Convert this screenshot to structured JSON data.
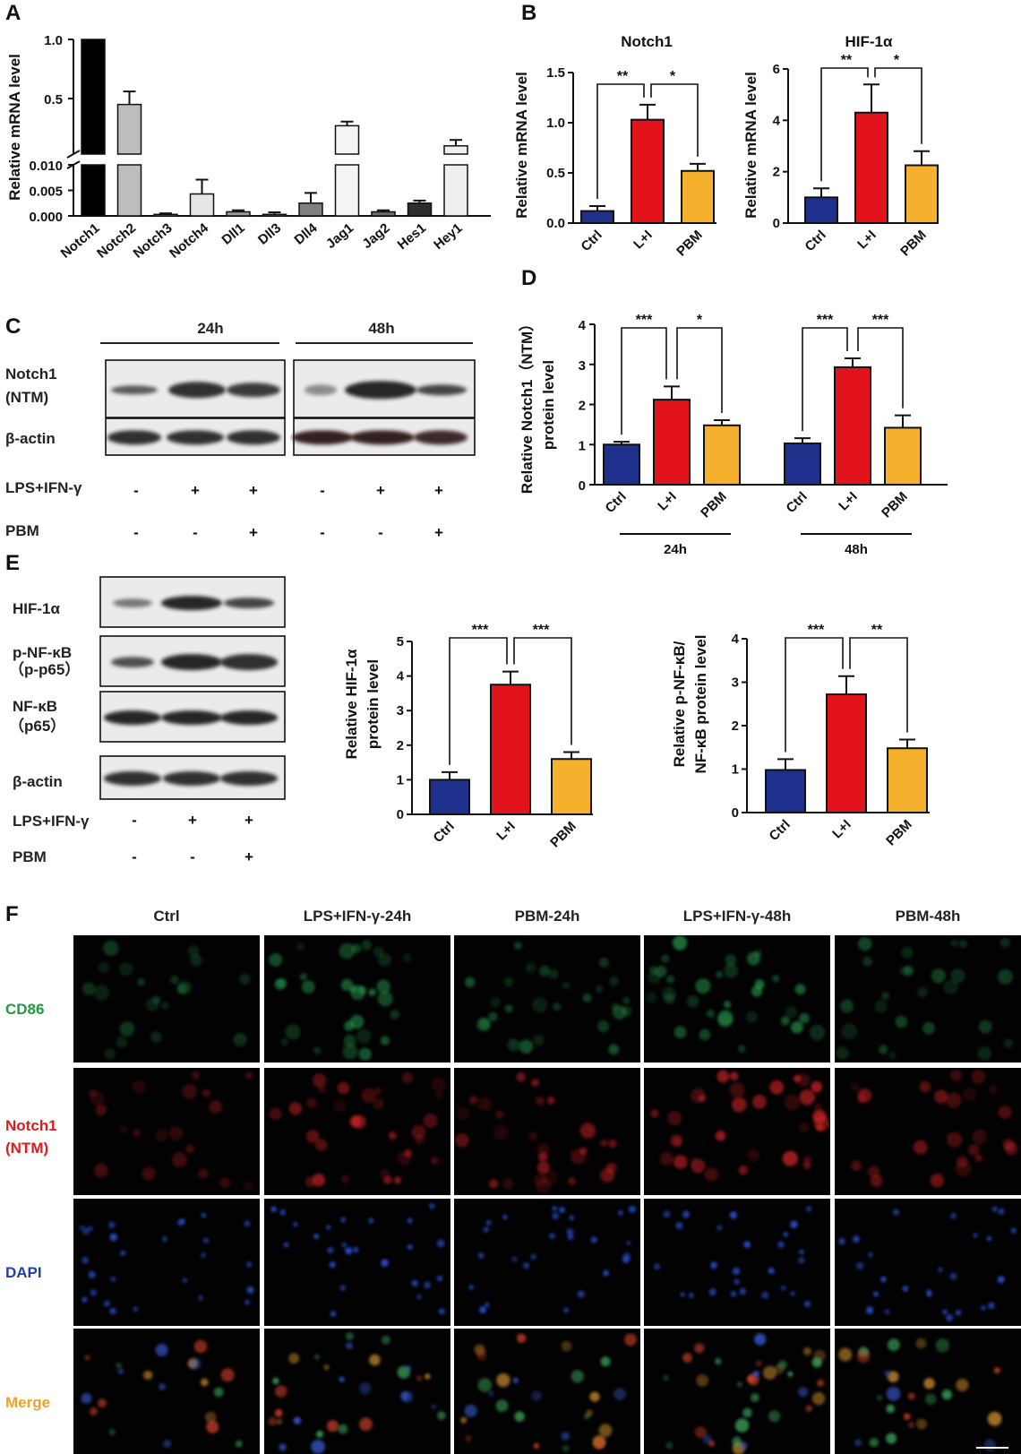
{
  "panel_labels": {
    "A": "A",
    "B": "B",
    "C": "C",
    "D": "D",
    "E": "E",
    "F": "F"
  },
  "colors": {
    "ctrl": "#1f2f8c",
    "li": "#e3131b",
    "pbm": "#f5b12e"
  },
  "blot_c": {
    "time_labels": [
      "24h",
      "48h"
    ],
    "row_labels": [
      "Notch1",
      "(NTM)",
      "β-actin"
    ],
    "treat_labels": [
      "LPS+IFN-γ",
      "PBM"
    ],
    "lps_marks": [
      "-",
      "+",
      "+",
      "-",
      "+",
      "+"
    ],
    "pbm_marks": [
      "-",
      "-",
      "+",
      "-",
      "-",
      "+"
    ]
  },
  "blot_e": {
    "row_labels": [
      "HIF-1α",
      "p-NF-κB",
      "（p-p65）",
      "NF-κB",
      "（p65）",
      "β-actin"
    ],
    "treat_labels": [
      "LPS+IFN-γ",
      "PBM"
    ],
    "lps_marks": [
      "-",
      "+",
      "+"
    ],
    "pbm_marks": [
      "-",
      "-",
      "+"
    ]
  },
  "panel_f": {
    "columns": [
      "Ctrl",
      "LPS+IFN-γ-24h",
      "PBM-24h",
      "LPS+IFN-γ-48h",
      "PBM-48h"
    ],
    "rows": [
      "CD86",
      "Notch1",
      "(NTM)",
      "DAPI",
      "Merge"
    ],
    "row_colors": [
      "#1f9a3c",
      "#e01b1b",
      "#e01b1b",
      "#1f3fb0",
      "#f0a226"
    ]
  },
  "chart_data": [
    {
      "id": "A",
      "type": "bar",
      "ylabel": "Relative mRNA level",
      "categories": [
        "Notch1",
        "Notch2",
        "Notch3",
        "Notch4",
        "Dll1",
        "Dll3",
        "Dll4",
        "Jag1",
        "Jag2",
        "Hes1",
        "Hey1"
      ],
      "values": [
        1.0,
        0.45,
        0.0003,
        0.0043,
        0.0008,
        0.0003,
        0.0025,
        0.27,
        0.0008,
        0.0025,
        0.1
      ],
      "errors": [
        0,
        0.11,
        0.0002,
        0.0028,
        0.0003,
        0.0004,
        0.002,
        0.035,
        0.0003,
        0.0005,
        0.05
      ],
      "fills": [
        "#000000",
        "#bdbdbd",
        "#cfcfcf",
        "#e6e6e6",
        "#9a9a9a",
        "#9a9a9a",
        "#808080",
        "#f4f4f4",
        "#6e6e6e",
        "#2e2e2e",
        "#efefef"
      ],
      "yaxis": {
        "broken": true,
        "lower": {
          "range": [
            0,
            0.01
          ],
          "ticks": [
            "0.000",
            "0.005",
            "0.010"
          ]
        },
        "upper": {
          "range": [
            0,
            1.0
          ],
          "ticks": [
            "0.5",
            "1.0"
          ]
        }
      }
    },
    {
      "id": "B1",
      "type": "bar",
      "title": "Notch1",
      "ylabel": "Relative mRNA level",
      "categories": [
        "Ctrl",
        "L+I",
        "PBM"
      ],
      "values": [
        0.12,
        1.03,
        0.52
      ],
      "errors": [
        0.05,
        0.15,
        0.07
      ],
      "ylim": [
        0,
        1.5
      ],
      "ticks": [
        "0.0",
        "0.5",
        "1.0",
        "1.5"
      ],
      "brackets": [
        {
          "from": 0,
          "to": 1,
          "label": "**"
        },
        {
          "from": 1,
          "to": 2,
          "label": "*"
        }
      ]
    },
    {
      "id": "B2",
      "type": "bar",
      "title": "HIF-1α",
      "ylabel": "Relative mRNA level",
      "categories": [
        "Ctrl",
        "L+I",
        "PBM"
      ],
      "values": [
        1.0,
        4.3,
        2.25
      ],
      "errors": [
        0.35,
        1.1,
        0.55
      ],
      "ylim": [
        0,
        6
      ],
      "ticks": [
        "0",
        "2",
        "4",
        "6"
      ],
      "brackets": [
        {
          "from": 0,
          "to": 1,
          "label": "**"
        },
        {
          "from": 1,
          "to": 2,
          "label": "*"
        }
      ]
    },
    {
      "id": "D",
      "type": "bar",
      "ylabel": [
        "Relative Notch1（NTM）",
        "protein level"
      ],
      "groups": [
        {
          "label": "24h",
          "categories": [
            "Ctrl",
            "L+I",
            "PBM"
          ],
          "values": [
            1.0,
            2.12,
            1.48
          ],
          "errors": [
            0.07,
            0.33,
            0.13
          ],
          "brackets": [
            {
              "from": 0,
              "to": 1,
              "label": "***"
            },
            {
              "from": 1,
              "to": 2,
              "label": "*"
            }
          ]
        },
        {
          "label": "48h",
          "categories": [
            "Ctrl",
            "L+I",
            "PBM"
          ],
          "values": [
            1.03,
            2.93,
            1.42
          ],
          "errors": [
            0.13,
            0.22,
            0.31
          ],
          "brackets": [
            {
              "from": 0,
              "to": 1,
              "label": "***"
            },
            {
              "from": 1,
              "to": 2,
              "label": "***"
            }
          ]
        }
      ],
      "ylim": [
        0,
        4
      ],
      "ticks": [
        "0",
        "1",
        "2",
        "3",
        "4"
      ]
    },
    {
      "id": "E1",
      "type": "bar",
      "ylabel": [
        "Relative HIF-1α",
        "protein level"
      ],
      "categories": [
        "Ctrl",
        "L+I",
        "PBM"
      ],
      "values": [
        1.0,
        3.75,
        1.6
      ],
      "errors": [
        0.22,
        0.38,
        0.2
      ],
      "ylim": [
        0,
        5
      ],
      "ticks": [
        "0",
        "1",
        "2",
        "3",
        "4",
        "5"
      ],
      "brackets": [
        {
          "from": 0,
          "to": 1,
          "label": "***"
        },
        {
          "from": 1,
          "to": 2,
          "label": "***"
        }
      ]
    },
    {
      "id": "E2",
      "type": "bar",
      "ylabel": [
        "Relative p-NF-κB/",
        "NF-κB protein level"
      ],
      "categories": [
        "Ctrl",
        "L+I",
        "PBM"
      ],
      "values": [
        0.98,
        2.72,
        1.48
      ],
      "errors": [
        0.25,
        0.42,
        0.2
      ],
      "ylim": [
        0,
        4
      ],
      "ticks": [
        "0",
        "1",
        "2",
        "3",
        "4"
      ],
      "brackets": [
        {
          "from": 0,
          "to": 1,
          "label": "***"
        },
        {
          "from": 1,
          "to": 2,
          "label": "**"
        }
      ]
    }
  ]
}
